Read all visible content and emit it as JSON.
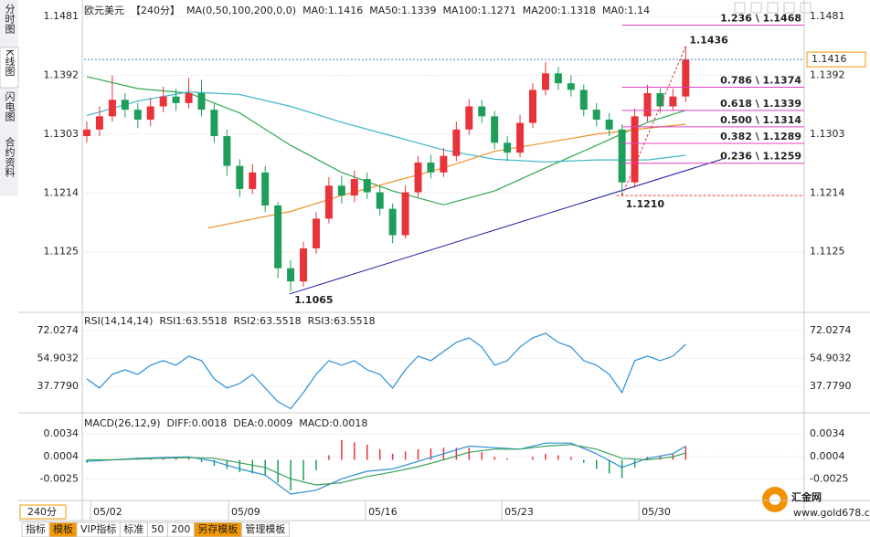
{
  "ui": {
    "tabs": [
      "分时图",
      "K线图",
      "闪电图",
      "合约资料"
    ],
    "period": "240分",
    "toolbar": [
      "指标",
      "模板",
      "VIP指标",
      "标准",
      "50",
      "200",
      "另存模板",
      "管理模板"
    ],
    "watermark": "汇金网",
    "watermark_url": "www.gold678.com"
  },
  "chart_data": [
    {
      "type": "candlestick",
      "title": "欧元美元",
      "period_label": "【240分】",
      "indicator": "MA(0,50,100,200,0,0)",
      "up_color": "#e8333a",
      "down_color": "#1e9e5a",
      "grid": true,
      "xlim": [
        -0.215,
        56.3
      ],
      "xticks": [
        {
          "value": 0.29,
          "label": "05/02"
        },
        {
          "value": 11.12,
          "label": "05/09"
        },
        {
          "value": 21.88,
          "label": "05/16"
        },
        {
          "value": 32.57,
          "label": "05/23"
        },
        {
          "value": 43.33,
          "label": "05/30"
        }
      ],
      "ylim": [
        1.1036,
        1.1495
      ],
      "yticks": [
        1.1481,
        1.1392,
        1.1303,
        1.1214,
        1.1125
      ],
      "open": [
        1.13,
        1.131,
        1.133,
        1.1355,
        1.134,
        1.1325,
        1.1345,
        1.136,
        1.135,
        1.1365,
        1.134,
        1.13,
        1.1255,
        1.122,
        1.1245,
        1.1195,
        1.11,
        1.108,
        1.113,
        1.1175,
        1.1225,
        1.121,
        1.1235,
        1.1215,
        1.119,
        1.115,
        1.1215,
        1.126,
        1.1245,
        1.127,
        1.131,
        1.1345,
        1.133,
        1.129,
        1.1275,
        1.132,
        1.137,
        1.1395,
        1.138,
        1.137,
        1.134,
        1.1325,
        1.131,
        1.123,
        1.133,
        1.1365,
        1.1345,
        1.136
      ],
      "high": [
        1.1322,
        1.1345,
        1.1392,
        1.1365,
        1.135,
        1.1358,
        1.1375,
        1.1372,
        1.1388,
        1.1385,
        1.135,
        1.131,
        1.1265,
        1.1258,
        1.1255,
        1.12,
        1.1112,
        1.114,
        1.1185,
        1.1238,
        1.124,
        1.1248,
        1.1245,
        1.1225,
        1.1198,
        1.1225,
        1.127,
        1.1272,
        1.1282,
        1.1322,
        1.1356,
        1.1355,
        1.1338,
        1.13,
        1.1332,
        1.138,
        1.1412,
        1.1405,
        1.1392,
        1.1378,
        1.135,
        1.1335,
        1.1318,
        1.1342,
        1.1378,
        1.1372,
        1.1372,
        1.1436
      ],
      "low": [
        1.129,
        1.13,
        1.1322,
        1.1328,
        1.1312,
        1.1315,
        1.1336,
        1.1338,
        1.1342,
        1.133,
        1.129,
        1.124,
        1.1208,
        1.1212,
        1.1185,
        1.1085,
        1.1065,
        1.1072,
        1.1122,
        1.1168,
        1.1198,
        1.12,
        1.1205,
        1.118,
        1.1138,
        1.1145,
        1.1208,
        1.1236,
        1.1238,
        1.1262,
        1.1302,
        1.132,
        1.128,
        1.1262,
        1.1268,
        1.1312,
        1.1362,
        1.137,
        1.136,
        1.133,
        1.1315,
        1.13,
        1.121,
        1.1222,
        1.1322,
        1.1335,
        1.1338,
        1.1352
      ],
      "close": [
        1.131,
        1.133,
        1.1355,
        1.134,
        1.1325,
        1.1345,
        1.136,
        1.135,
        1.1365,
        1.134,
        1.13,
        1.1255,
        1.122,
        1.1245,
        1.1195,
        1.11,
        1.108,
        1.113,
        1.1175,
        1.1225,
        1.121,
        1.1235,
        1.1215,
        1.119,
        1.115,
        1.1215,
        1.126,
        1.1245,
        1.127,
        1.131,
        1.1345,
        1.133,
        1.129,
        1.1275,
        1.132,
        1.137,
        1.1395,
        1.138,
        1.137,
        1.134,
        1.1325,
        1.131,
        1.123,
        1.133,
        1.1365,
        1.1345,
        1.136,
        1.1416
      ],
      "series": [
        {
          "name": "MA0:1.1416",
          "color": "#1f78d1"
        },
        {
          "name": "MA50:1.1339",
          "color": "#2fa84f",
          "x": [
            0,
            4,
            8,
            12,
            16,
            20,
            24,
            28,
            32,
            36,
            40,
            44,
            47
          ],
          "values": [
            1.139,
            1.1372,
            1.1365,
            1.1335,
            1.1286,
            1.1245,
            1.1217,
            1.1196,
            1.1217,
            1.1252,
            1.1286,
            1.1321,
            1.1339
          ]
        },
        {
          "name": "MA100:1.1271",
          "color": "#3fb6c8",
          "x": [
            0,
            4,
            8,
            12,
            16,
            20,
            24,
            28,
            32,
            36,
            40,
            44,
            47
          ],
          "values": [
            1.1331,
            1.1353,
            1.1367,
            1.1363,
            1.1345,
            1.1321,
            1.13,
            1.1279,
            1.1265,
            1.1261,
            1.1264,
            1.1264,
            1.1271
          ]
        },
        {
          "name": "MA200:1.1318",
          "color": "#f0932b",
          "x": [
            9.5,
            16,
            20,
            24,
            28,
            32,
            36,
            40,
            44,
            47
          ],
          "values": [
            1.1161,
            1.1186,
            1.121,
            1.1231,
            1.1252,
            1.1277,
            1.129,
            1.1303,
            1.1312,
            1.1318
          ]
        },
        {
          "name": "MA0:1.14",
          "color": "#e86ad0"
        }
      ],
      "last_price": 1.1416,
      "last_color": "#f39800",
      "annotations": [
        {
          "index": 47,
          "value": 1.1436,
          "color": "#e8333a"
        },
        {
          "index": 42,
          "value": 1.121,
          "label": "1.1210",
          "color": "#1e9e5a"
        },
        {
          "index": 16,
          "value": 1.1065,
          "color": "#1e9e5a"
        }
      ],
      "trendline": {
        "x": [
          15.9,
          49.85
        ],
        "y": [
          1.1061,
          1.1265
        ],
        "color": "#1a1aa0"
      },
      "fib_color": "#e040c0",
      "fib_start": 42,
      "fib": [
        {
          "value": 1.1468,
          "label": "1.236 \\ 1.1468"
        },
        {
          "value": 1.1374,
          "label": "0.786 \\ 1.1374"
        },
        {
          "value": 1.1339,
          "label": "0.618 \\ 1.1339"
        },
        {
          "value": 1.1314,
          "label": "0.500 \\ 1.1314"
        },
        {
          "value": 1.1289,
          "label": "0.382 \\ 1.1289"
        },
        {
          "value": 1.1259,
          "label": "0.236 \\ 1.1259"
        }
      ]
    },
    {
      "type": "line",
      "title": "RSI(14,14,14)",
      "grid": true,
      "ylim": [
        22.6,
        82.1
      ],
      "yticks": [
        72.0274,
        54.9032,
        {
          "value": 37.779,
          "label": "37.7790"
        }
      ],
      "series": [
        {
          "name": "RSI1:63.5518",
          "color": "#2b8fd8",
          "values": [
            42.28,
            36.67,
            45.09,
            47.89,
            45.09,
            50.7,
            53.51,
            50.7,
            56.31,
            53.51,
            42.28,
            36.67,
            39.48,
            45.09,
            36.67,
            28.25,
            24.0,
            33.86,
            45.09,
            53.51,
            50.7,
            53.51,
            47.89,
            45.09,
            36.67,
            47.89,
            56.31,
            53.51,
            59.12,
            64.73,
            67.54,
            61.93,
            50.7,
            53.51,
            61.93,
            67.54,
            70.35,
            64.73,
            61.93,
            53.51,
            50.7,
            45.09,
            33.86,
            53.51,
            56.31,
            53.51,
            56.31,
            63.5518
          ]
        },
        {
          "name": "RSI2:63.5518",
          "color": "#3aa05a"
        },
        {
          "name": "RSI3:63.5518",
          "color": "#3fb6c8"
        }
      ]
    },
    {
      "type": "macd",
      "title": "MACD(26,12,9)",
      "grid": true,
      "ylim": [
        -0.0051,
        0.0057
      ],
      "yticks": [
        0.0034,
        0.0004,
        -0.0025
      ],
      "up_color": "#e8333a",
      "down_color": "#1e9e5a",
      "series": [
        {
          "name": "DIFF:0.0018",
          "color": "#2b8fd8",
          "x": [
            0,
            2,
            4,
            6,
            8,
            10,
            12,
            14,
            16,
            18,
            20,
            22,
            24,
            26,
            28,
            30,
            32,
            34,
            36,
            38,
            40,
            42,
            44,
            46,
            47
          ],
          "values": [
            -0.0002,
            0,
            0.0002,
            0.0003,
            0.0004,
            -0.0002,
            -0.0012,
            -0.002,
            -0.0045,
            -0.004,
            -0.0025,
            -0.0015,
            -0.0012,
            -0.0002,
            0.0008,
            0.0018,
            0.0016,
            0.0014,
            0.0022,
            0.0022,
            0.0008,
            -0.001,
            0.0002,
            0.0008,
            0.0018
          ]
        },
        {
          "name": "DEA:0.0009",
          "color": "#3aa05a",
          "x": [
            0,
            2,
            4,
            6,
            8,
            10,
            12,
            14,
            16,
            18,
            20,
            22,
            24,
            26,
            28,
            30,
            32,
            34,
            36,
            38,
            40,
            42,
            44,
            46,
            47
          ],
          "values": [
            0,
            0,
            0.0001,
            0.0002,
            0.0003,
            0.0002,
            -0.0004,
            -0.001,
            -0.0025,
            -0.0033,
            -0.003,
            -0.0022,
            -0.0016,
            -0.0009,
            0,
            0.001,
            0.0014,
            0.0014,
            0.0018,
            0.002,
            0.0014,
            0.0002,
            0,
            0.0004,
            0.0009
          ]
        },
        {
          "name": "MACD:0.0018",
          "color": "#a040a0",
          "bars": true,
          "values": [
            -0.0004,
            -0.0002,
            0,
            0.0001,
            0.0002,
            0.0002,
            0.0002,
            0.0002,
            0.0002,
            -0.0003,
            -0.0008,
            -0.0012,
            -0.0016,
            -0.0018,
            -0.002,
            -0.003,
            -0.004,
            -0.0027,
            -0.0014,
            0.0006,
            0.0026,
            0.0023,
            0.002,
            0.0014,
            0.0008,
            0.0011,
            0.0014,
            0.0015,
            0.0016,
            0.0016,
            0.0016,
            0.001,
            0.0004,
            0.0002,
            0,
            0.0004,
            0.0008,
            0.0006,
            0.0004,
            -0.0004,
            -0.0012,
            -0.0018,
            -0.0024,
            -0.001,
            0.0004,
            0.0006,
            0.0008,
            0.0018
          ]
        }
      ]
    }
  ]
}
